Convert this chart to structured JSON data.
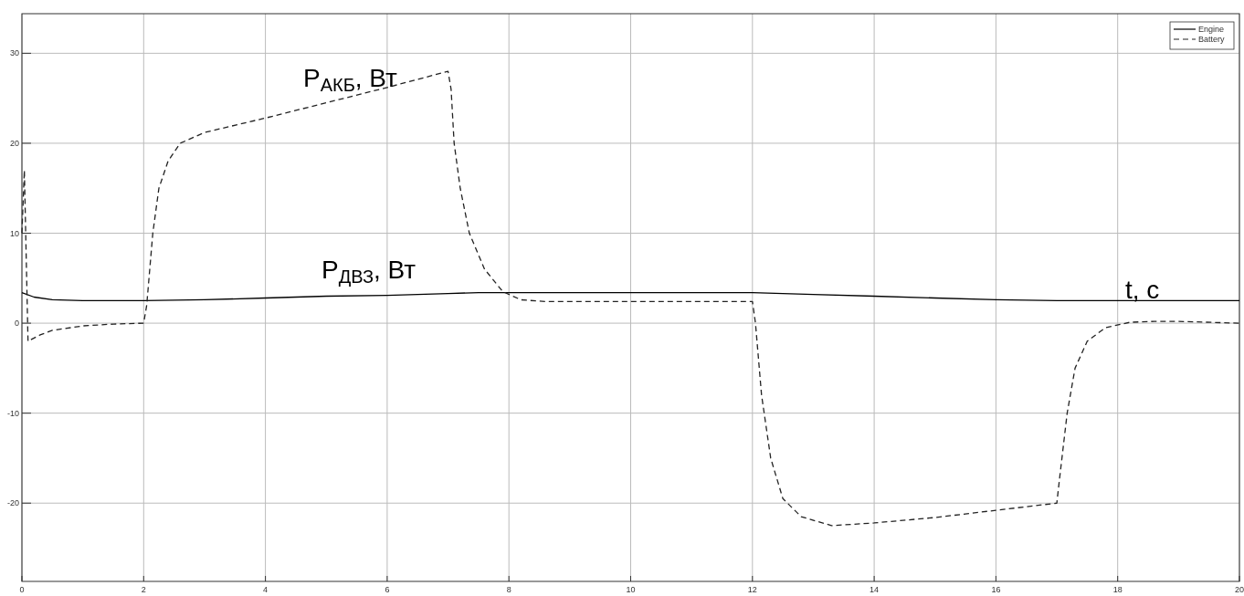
{
  "chart_data": {
    "type": "line",
    "xlim": [
      0,
      20
    ],
    "xticks": [
      0,
      2,
      4,
      6,
      8,
      10,
      12,
      14,
      16,
      18,
      20
    ],
    "ylim": [
      -28.7,
      34.4
    ],
    "yticks": [
      -20,
      -10,
      0,
      10,
      20,
      30
    ],
    "grid": true,
    "legend": "top right",
    "annotations": [
      "P$_{АКБ}$, Вт",
      "P$_{ДВЗ}$, Вт",
      "t, с"
    ],
    "series": [
      {
        "name": "Engine",
        "color": "#000000",
        "line_style": "solid",
        "x": [
          0,
          0.2,
          0.5,
          1,
          2,
          3,
          4,
          5,
          6,
          7,
          7.5,
          8,
          10,
          12,
          13,
          14,
          15,
          16,
          17,
          18,
          20
        ],
        "values": [
          3.4,
          2.9,
          2.6,
          2.5,
          2.5,
          2.6,
          2.8,
          3.0,
          3.1,
          3.3,
          3.4,
          3.4,
          3.4,
          3.4,
          3.2,
          3.0,
          2.8,
          2.6,
          2.5,
          2.5,
          2.5
        ]
      },
      {
        "name": "Battery",
        "color": "#222222",
        "line_style": "dashed",
        "x": [
          0,
          0.04,
          0.1,
          0.3,
          0.5,
          1,
          1.5,
          2,
          2.05,
          2.15,
          2.25,
          2.4,
          2.6,
          3,
          4,
          5,
          6,
          7,
          7.05,
          7.1,
          7.2,
          7.35,
          7.6,
          7.9,
          8.2,
          8.6,
          9,
          12,
          12.05,
          12.15,
          12.3,
          12.5,
          12.8,
          13.3,
          14,
          15,
          16,
          17,
          17.05,
          17.17,
          17.3,
          17.5,
          17.8,
          18.2,
          18.6,
          19,
          20
        ],
        "values": [
          10,
          17,
          -2,
          -1.3,
          -0.8,
          -0.3,
          -0.1,
          0,
          2,
          10,
          15,
          18,
          20,
          21.2,
          22.8,
          24.5,
          26.2,
          28,
          26,
          20,
          15,
          10,
          6,
          3.5,
          2.6,
          2.4,
          2.4,
          2.4,
          0,
          -8,
          -15,
          -19.5,
          -21.5,
          -22.5,
          -22.2,
          -21.6,
          -20.8,
          -20,
          -17,
          -10,
          -5,
          -2,
          -0.5,
          0.1,
          0.2,
          0.2,
          0
        ]
      }
    ]
  }
}
